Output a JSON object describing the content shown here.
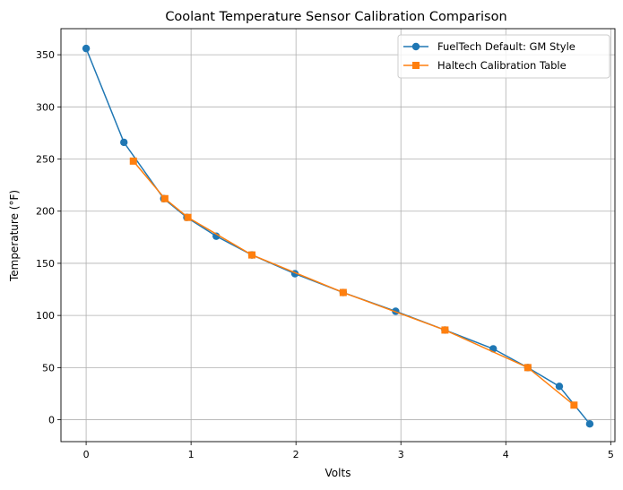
{
  "chart_data": {
    "type": "line",
    "title": "Coolant Temperature Sensor Calibration Comparison",
    "xlabel": "Volts",
    "ylabel": "Temperature (°F)",
    "xlim": [
      -0.24,
      5.04
    ],
    "ylim": [
      -21,
      375
    ],
    "xticks": [
      0,
      1,
      2,
      3,
      4,
      5
    ],
    "yticks": [
      0,
      50,
      100,
      150,
      200,
      250,
      300,
      350
    ],
    "grid": true,
    "legend_position": "top-right",
    "series": [
      {
        "name": "FuelTech Default: GM Style",
        "color": "#1f77b4",
        "marker": "circle",
        "x": [
          0.0,
          0.36,
          0.74,
          0.96,
          1.24,
          1.58,
          1.99,
          2.45,
          2.95,
          3.42,
          3.88,
          4.21,
          4.51,
          4.8
        ],
        "y": [
          356,
          266,
          212,
          194,
          176,
          158,
          140,
          122,
          104,
          86,
          68,
          50,
          32,
          -4
        ]
      },
      {
        "name": "Haltech Calibration Table",
        "color": "#ff7f0e",
        "marker": "square",
        "x": [
          0.45,
          0.75,
          0.97,
          1.58,
          2.45,
          3.42,
          4.21,
          4.65
        ],
        "y": [
          248,
          212,
          194,
          158,
          122,
          86,
          50,
          14
        ]
      }
    ]
  }
}
